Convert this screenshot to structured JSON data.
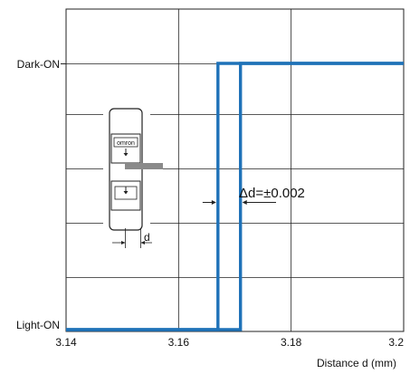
{
  "chart_data": {
    "type": "line",
    "xlabel": "Distance d (mm)",
    "xlim": [
      3.14,
      3.2
    ],
    "x_ticks": [
      {
        "value": 3.14,
        "label": "3.14"
      },
      {
        "value": 3.16,
        "label": "3.16"
      },
      {
        "value": 3.18,
        "label": "3.18"
      },
      {
        "value": 3.2,
        "label": "3.2"
      }
    ],
    "y_states": [
      {
        "key": "light",
        "label": "Light-ON"
      },
      {
        "key": "dark",
        "label": "Dark-ON"
      }
    ],
    "series": [
      {
        "points": [
          [
            3.14,
            "light"
          ],
          [
            3.167,
            "light"
          ],
          [
            3.167,
            "dark"
          ],
          [
            3.2,
            "dark"
          ]
        ]
      },
      {
        "points": [
          [
            3.14,
            "light"
          ],
          [
            3.171,
            "light"
          ],
          [
            3.171,
            "dark"
          ],
          [
            3.2,
            "dark"
          ]
        ]
      }
    ],
    "annotation": {
      "label": "Δd=±0.002",
      "x_from": 3.167,
      "x_to": 3.171
    },
    "inset_label": "d",
    "inset_brand": "omron",
    "grid": true,
    "line_color": "#1f72b8"
  }
}
